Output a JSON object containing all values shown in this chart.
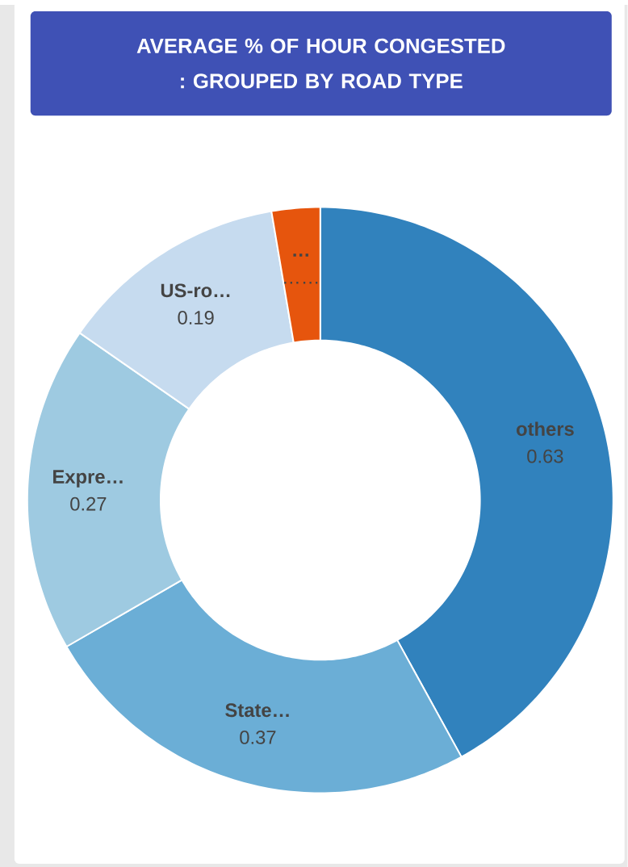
{
  "chart_data": {
    "type": "donut",
    "title": "AVERAGE % OF HOUR CONGESTED : GROUPED BY ROAD TYPE",
    "categories": [
      "others",
      "State…",
      "Expre…",
      "US-ro…",
      "…"
    ],
    "values": [
      0.63,
      0.37,
      0.27,
      0.19,
      0.04
    ],
    "value_labels": [
      "0.63",
      "0.37",
      "0.27",
      "0.19",
      "……"
    ],
    "colors": [
      "#3182bd",
      "#6baed6",
      "#9ecae1",
      "#c6dbef",
      "#e6550d"
    ]
  }
}
